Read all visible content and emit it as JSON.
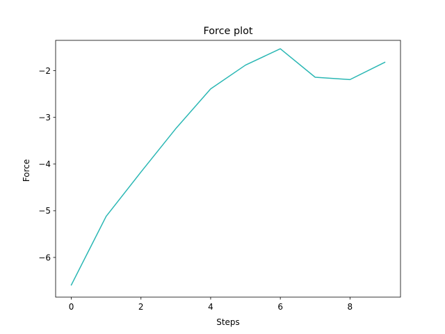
{
  "chart_data": {
    "type": "line",
    "title": "Force plot",
    "xlabel": "Steps",
    "ylabel": "Force",
    "x": [
      0,
      1,
      2,
      3,
      4,
      5,
      6,
      7,
      8,
      9
    ],
    "xlim": [
      -0.45,
      9.45
    ],
    "ylim": [
      -6.85,
      -1.35
    ],
    "xticks": [
      0,
      2,
      4,
      6,
      8
    ],
    "yticks": [
      -6,
      -5,
      -4,
      -3,
      -2
    ],
    "xtick_labels": [
      "0",
      "2",
      "4",
      "6",
      "8"
    ],
    "ytick_labels": [
      "−6",
      "−5",
      "−4",
      "−3",
      "−2"
    ],
    "grid": false,
    "series": [
      {
        "color": "#2ab7b4",
        "values": [
          -6.59,
          -5.12,
          -4.17,
          -3.24,
          -2.39,
          -1.88,
          -1.53,
          -2.14,
          -2.19,
          -1.82
        ]
      }
    ]
  }
}
